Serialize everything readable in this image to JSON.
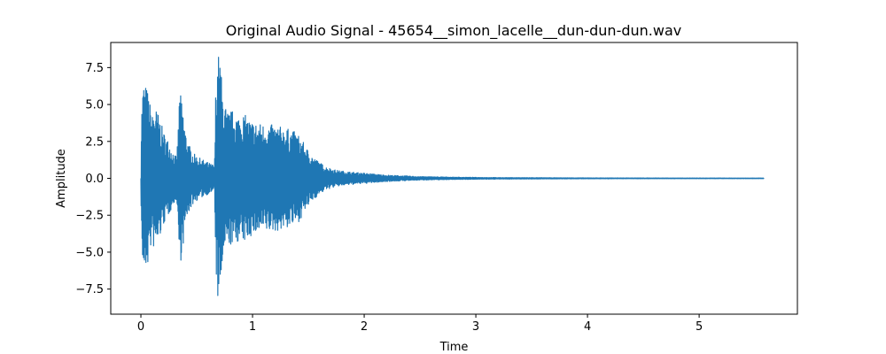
{
  "chart_data": {
    "type": "line",
    "title": "Original Audio Signal - 45654__simon_lacelle__dun-dun-dun.wav",
    "xlabel": "Time",
    "ylabel": "Amplitude",
    "xlim": [
      -0.27,
      5.88
    ],
    "ylim": [
      -9.2,
      9.2
    ],
    "xticks": [
      0,
      1,
      2,
      3,
      4,
      5
    ],
    "xtick_labels": [
      "0",
      "1",
      "2",
      "3",
      "4",
      "5"
    ],
    "yticks": [
      -7.5,
      -5.0,
      -2.5,
      0.0,
      2.5,
      5.0,
      7.5
    ],
    "ytick_labels": [
      "−7.5",
      "−5.0",
      "−2.5",
      "0.0",
      "2.5",
      "5.0",
      "7.5"
    ],
    "grid": false,
    "line_color": "#1f77b4",
    "series": [
      {
        "duration": 5.58,
        "envelope": [
          [
            0.0,
            0.0
          ],
          [
            0.005,
            4.5
          ],
          [
            0.02,
            6.6
          ],
          [
            0.04,
            6.4
          ],
          [
            0.06,
            6.0
          ],
          [
            0.08,
            5.2
          ],
          [
            0.1,
            4.2
          ],
          [
            0.12,
            5.0
          ],
          [
            0.15,
            4.5
          ],
          [
            0.18,
            3.8
          ],
          [
            0.2,
            3.2
          ],
          [
            0.23,
            2.8
          ],
          [
            0.26,
            2.3
          ],
          [
            0.29,
            1.8
          ],
          [
            0.32,
            1.4
          ],
          [
            0.335,
            3.5
          ],
          [
            0.345,
            6.0
          ],
          [
            0.36,
            5.5
          ],
          [
            0.38,
            4.5
          ],
          [
            0.4,
            3.2
          ],
          [
            0.43,
            2.3
          ],
          [
            0.47,
            1.7
          ],
          [
            0.52,
            1.4
          ],
          [
            0.57,
            1.2
          ],
          [
            0.62,
            1.0
          ],
          [
            0.66,
            0.9
          ],
          [
            0.67,
            6.0
          ],
          [
            0.69,
            8.5
          ],
          [
            0.71,
            8.2
          ],
          [
            0.73,
            6.0
          ],
          [
            0.77,
            4.5
          ],
          [
            0.82,
            4.6
          ],
          [
            0.87,
            4.3
          ],
          [
            0.92,
            4.4
          ],
          [
            0.97,
            4.0
          ],
          [
            1.02,
            3.8
          ],
          [
            1.1,
            3.7
          ],
          [
            1.2,
            3.6
          ],
          [
            1.3,
            3.4
          ],
          [
            1.37,
            3.2
          ],
          [
            1.42,
            2.9
          ],
          [
            1.48,
            2.1
          ],
          [
            1.55,
            1.4
          ],
          [
            1.65,
            0.8
          ],
          [
            1.75,
            0.55
          ],
          [
            1.85,
            0.45
          ],
          [
            2.0,
            0.35
          ],
          [
            2.2,
            0.22
          ],
          [
            2.5,
            0.12
          ],
          [
            2.8,
            0.08
          ],
          [
            3.2,
            0.05
          ],
          [
            4.0,
            0.03
          ],
          [
            5.0,
            0.02
          ],
          [
            5.58,
            0.02
          ]
        ]
      }
    ]
  }
}
